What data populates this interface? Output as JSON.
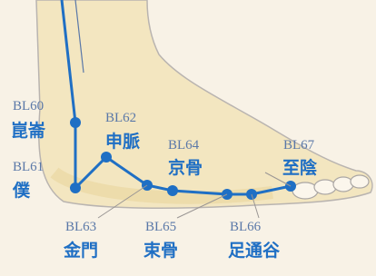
{
  "points": [
    {
      "code": "BL60",
      "name": "崑崙"
    },
    {
      "code": "BL61",
      "name": "僕"
    },
    {
      "code": "BL62",
      "name": "申脈"
    },
    {
      "code": "BL63",
      "name": "金門"
    },
    {
      "code": "BL64",
      "name": "京骨"
    },
    {
      "code": "BL65",
      "name": "束骨"
    },
    {
      "code": "BL66",
      "name": "足通谷"
    },
    {
      "code": "BL67",
      "name": "至陰"
    }
  ]
}
